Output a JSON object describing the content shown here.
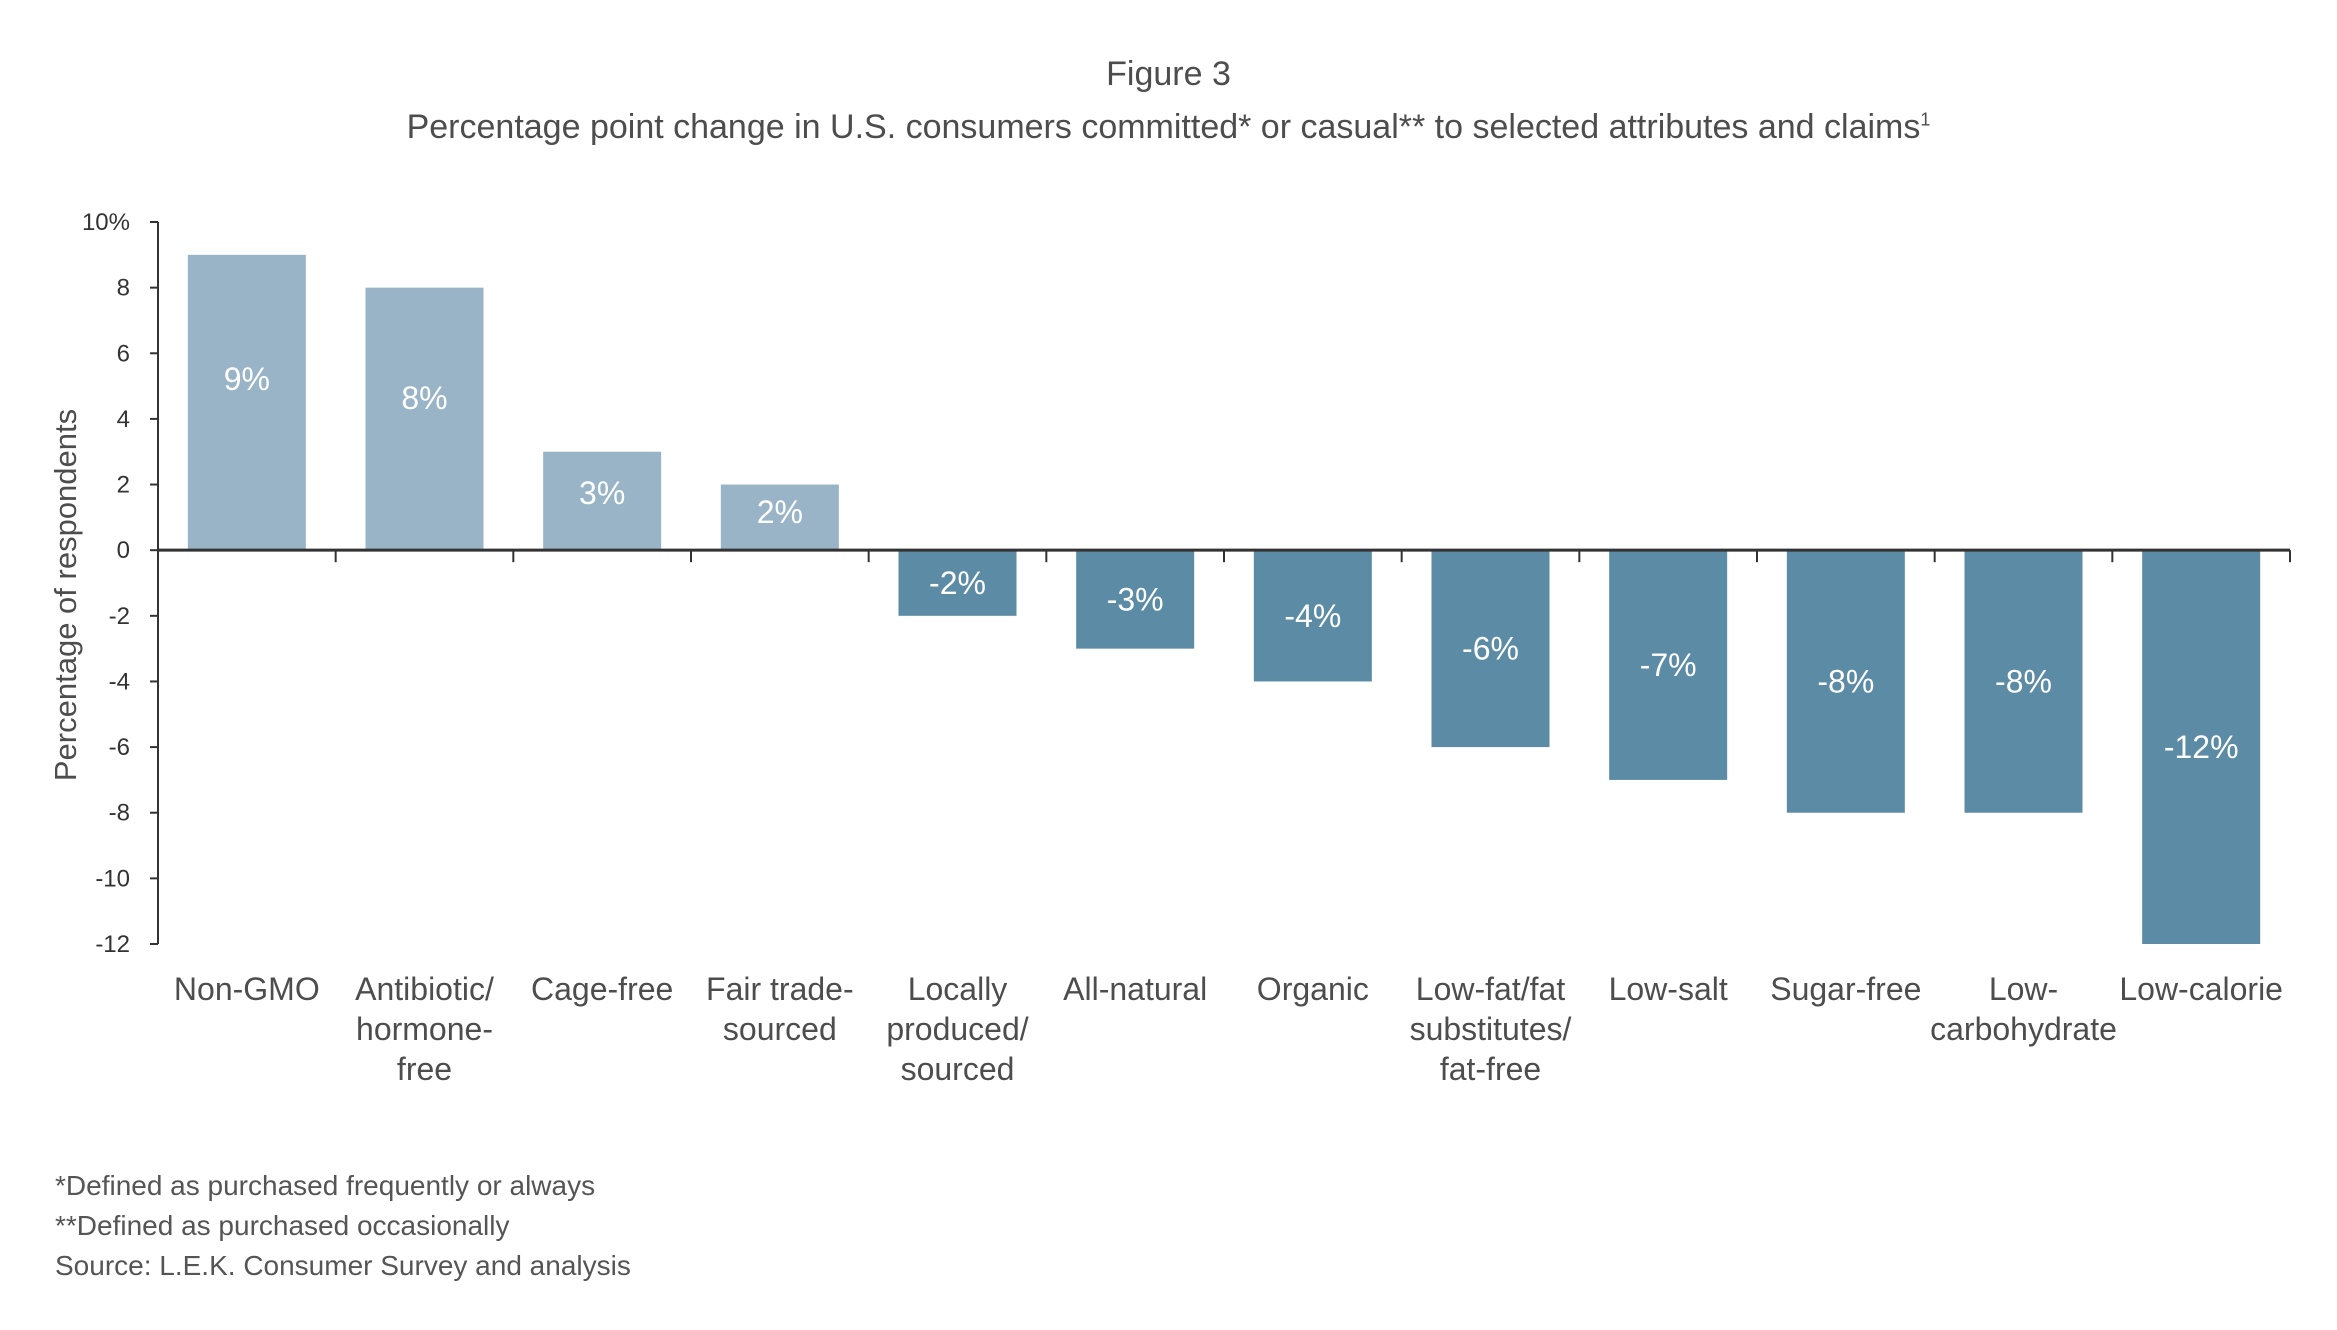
{
  "figure_label": "Figure 3",
  "title_main": "Percentage point change in U.S. consumers committed* or casual** to selected attributes and claims",
  "title_sup": "1",
  "footnotes": {
    "committed": "*Defined as purchased frequently or always",
    "casual": "**Defined as purchased occasionally",
    "source": "Source: L.E.K. Consumer Survey and analysis"
  },
  "colors": {
    "positive": "#98b4c6",
    "negative": "#5c8ba5",
    "axis": "#333333",
    "text": "#4d4d4d",
    "bar_label": "#ffffff"
  },
  "chart_data": {
    "type": "bar",
    "title": "Percentage point change in U.S. consumers committed* or casual** to selected attributes and claims",
    "xlabel": "",
    "ylabel": "Percentage of respondents",
    "ylim": [
      -12,
      10
    ],
    "yticks": [
      10,
      8,
      6,
      4,
      2,
      0,
      -2,
      -4,
      -6,
      -8,
      -10,
      -12
    ],
    "ytick_labels": [
      "10%",
      "8",
      "6",
      "4",
      "2",
      "0",
      "-2",
      "-4",
      "-6",
      "-8",
      "-10",
      "-12"
    ],
    "grid": false,
    "legend": "none",
    "categories": [
      [
        "Non-GMO"
      ],
      [
        "Antibiotic/",
        "hormone-",
        "free"
      ],
      [
        "Cage-free"
      ],
      [
        "Fair trade-",
        "sourced"
      ],
      [
        "Locally",
        "produced/",
        "sourced"
      ],
      [
        "All-natural"
      ],
      [
        "Organic"
      ],
      [
        "Low-fat/fat",
        "substitutes/",
        "fat-free"
      ],
      [
        "Low-salt"
      ],
      [
        "Sugar-free"
      ],
      [
        "Low-",
        "carbohydrate"
      ],
      [
        "Low-calorie"
      ]
    ],
    "values": [
      9,
      8,
      3,
      2,
      -2,
      -3,
      -4,
      -6,
      -7,
      -8,
      -8,
      -12
    ],
    "data_labels": [
      "9%",
      "8%",
      "3%",
      "2%",
      "-2%",
      "-3%",
      "-4%",
      "-6%",
      "-7%",
      "-8%",
      "-8%",
      "-12%"
    ]
  }
}
